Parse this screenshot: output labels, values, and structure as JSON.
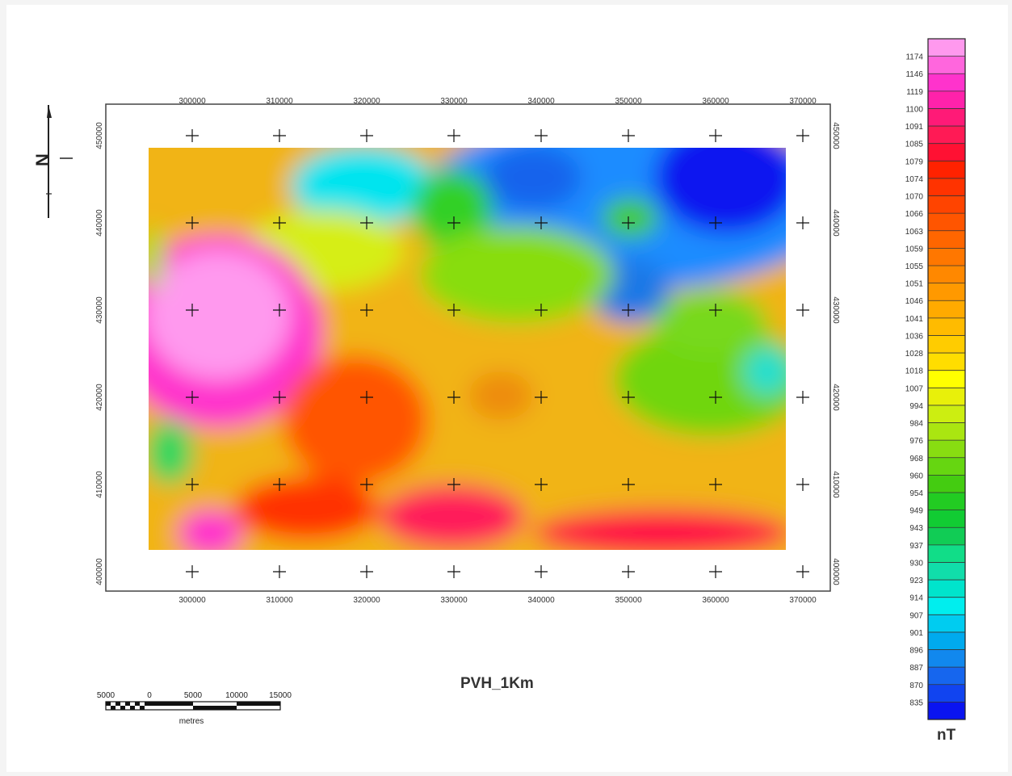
{
  "map": {
    "title": "PVH_1Km",
    "unit": "nT",
    "x_ticks": [
      "300000",
      "310000",
      "320000",
      "330000",
      "340000",
      "350000",
      "360000",
      "370000"
    ],
    "y_ticks_left": [
      "450000",
      "440000",
      "430000",
      "420000",
      "410000",
      "400000"
    ],
    "y_ticks_right": [
      "450000",
      "440000",
      "430000",
      "420000",
      "410000",
      "400000"
    ],
    "north_arrow_letter": "N",
    "scale_bar": {
      "labels": [
        "5000",
        "0",
        "5000",
        "10000",
        "15000"
      ],
      "unit": "metres"
    },
    "legend": {
      "levels": [
        "1174",
        "1146",
        "1119",
        "1100",
        "1091",
        "1085",
        "1079",
        "1074",
        "1070",
        "1066",
        "1063",
        "1059",
        "1055",
        "1051",
        "1046",
        "1041",
        "1036",
        "1028",
        "1018",
        "1007",
        "994",
        "984",
        "976",
        "968",
        "960",
        "954",
        "949",
        "943",
        "937",
        "930",
        "923",
        "914",
        "907",
        "901",
        "896",
        "887",
        "870",
        "835"
      ]
    }
  },
  "colors": {
    "max": "#ff99ee",
    "min": "#0a14f0",
    "frame": "#444444",
    "grid_cross": "#111111"
  }
}
